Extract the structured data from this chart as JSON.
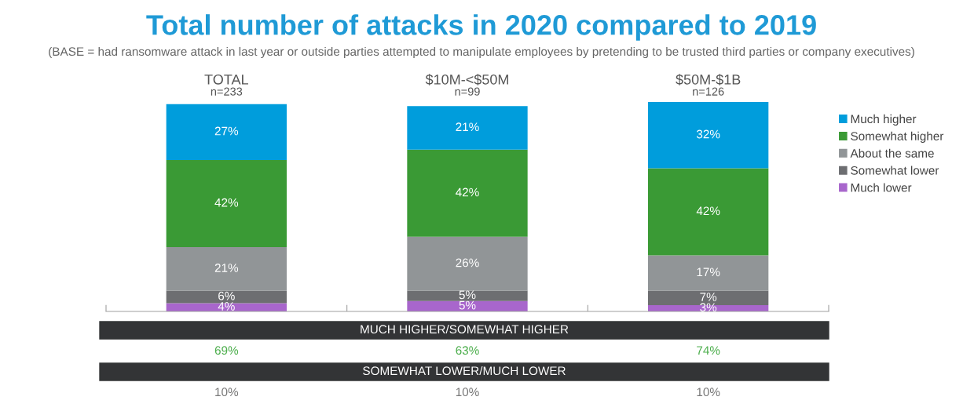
{
  "chart_data": {
    "type": "bar",
    "stacked": true,
    "legend": "right",
    "grid": false,
    "title": "Total number of attacks in 2020 compared to 2019",
    "subtitle": "(BASE = had ransomware attack in last year or outside parties attempted to manipulate employees by pretending to be trusted third parties or company executives)",
    "categories": [
      "TOTAL\nn=233",
      "$10M-<$50M\nn=99",
      "$50M-$1B\nn=126"
    ],
    "series": [
      {
        "name": "Much lower",
        "color": "#a866cc",
        "values": [
          4,
          5,
          3
        ],
        "value_labels": [
          "4%",
          "5%",
          "3%"
        ]
      },
      {
        "name": "Somewhat lower",
        "color": "#6d6e71",
        "values": [
          6,
          5,
          7
        ],
        "value_labels": [
          "6%",
          "5%",
          "7%"
        ]
      },
      {
        "name": "About the same",
        "color": "#919597",
        "values": [
          21,
          26,
          17
        ],
        "value_labels": [
          "21%",
          "26%",
          "17%"
        ]
      },
      {
        "name": "Somewhat higher",
        "color": "#3a9a35",
        "values": [
          42,
          42,
          42
        ],
        "value_labels": [
          "42%",
          "42%",
          "42%"
        ]
      },
      {
        "name": "Much higher",
        "color": "#009ddc",
        "values": [
          27,
          21,
          32
        ],
        "value_labels": [
          "27%",
          "21%",
          "32%"
        ]
      }
    ],
    "annotations": [
      "MUCH HIGHER/SOMEWHAT HIGHER",
      "69%",
      "63%",
      "74%",
      "SOMEWHAT LOWER/MUCH LOWER",
      "10%",
      "10%",
      "10%"
    ]
  }
}
